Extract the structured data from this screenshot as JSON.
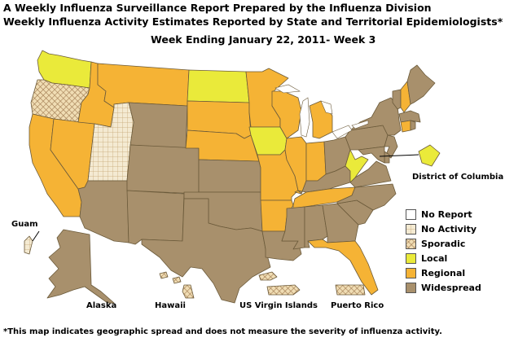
{
  "header": {
    "title_line1": "A Weekly Influenza Surveillance Report Prepared by the Influenza Division",
    "title_line2": "Weekly Influenza Activity Estimates Reported by State and Territorial Epidemiologists*",
    "week": "Week Ending January 22, 2011- Week 3"
  },
  "labels": {
    "district_of_columbia": "District of Columbia",
    "guam": "Guam",
    "alaska": "Alaska",
    "hawaii": "Hawaii",
    "us_virgin_islands": "US Virgin Islands",
    "puerto_rico": "Puerto Rico"
  },
  "legend": [
    {
      "key": "no_report",
      "label": "No Report",
      "color": "#ffffff"
    },
    {
      "key": "no_activity",
      "label": "No Activity",
      "color": "#e8dcc0"
    },
    {
      "key": "sporadic",
      "label": "Sporadic",
      "color": "#e6c99a"
    },
    {
      "key": "local",
      "label": "Local",
      "color": "#eaea3a"
    },
    {
      "key": "regional",
      "label": "Regional",
      "color": "#f5b335"
    },
    {
      "key": "widespread",
      "label": "Widespread",
      "color": "#a8906c"
    }
  ],
  "footnote": "*This map indicates geographic spread and does not measure the severity of influenza activity.",
  "colors": {
    "widespread": "#a8906c",
    "regional": "#f5b335",
    "local": "#eaea3a",
    "sporadic_base": "#f0ddb4",
    "sporadic_hatch": "#a07a50",
    "noact_base": "#f4ead2",
    "noact_hatch": "#c8a878",
    "border": "#6b5a3a",
    "lake": "#ffffff"
  },
  "states": {
    "WA": "local",
    "OR": "sporadic",
    "CA": "regional",
    "NV": "regional",
    "ID": "regional",
    "MT": "regional",
    "WY": "widespread",
    "UT": "no_activity",
    "AZ": "widespread",
    "CO": "widespread",
    "NM": "widespread",
    "ND": "local",
    "SD": "regional",
    "NE": "regional",
    "KS": "widespread",
    "OK": "widespread",
    "TX": "widespread",
    "MN": "regional",
    "IA": "local",
    "MO": "regional",
    "AR": "regional",
    "LA": "widespread",
    "WI": "regional",
    "IL": "regional",
    "MI": "regional",
    "IN": "regional",
    "OH": "widespread",
    "KY": "widespread",
    "TN": "regional",
    "MS": "widespread",
    "AL": "widespread",
    "GA": "widespread",
    "FL": "regional",
    "SC": "widespread",
    "NC": "widespread",
    "VA": "widespread",
    "WV": "local",
    "PA": "widespread",
    "NY": "widespread",
    "VT": "widespread",
    "NH": "regional",
    "ME": "widespread",
    "MA": "widespread",
    "CT": "regional",
    "RI": "widespread",
    "NJ": "widespread",
    "DE": "widespread",
    "MD": "widespread",
    "DC": "local",
    "AK": "widespread",
    "HI": "sporadic",
    "GU": "no_activity",
    "VI": "sporadic",
    "PR": "sporadic"
  }
}
